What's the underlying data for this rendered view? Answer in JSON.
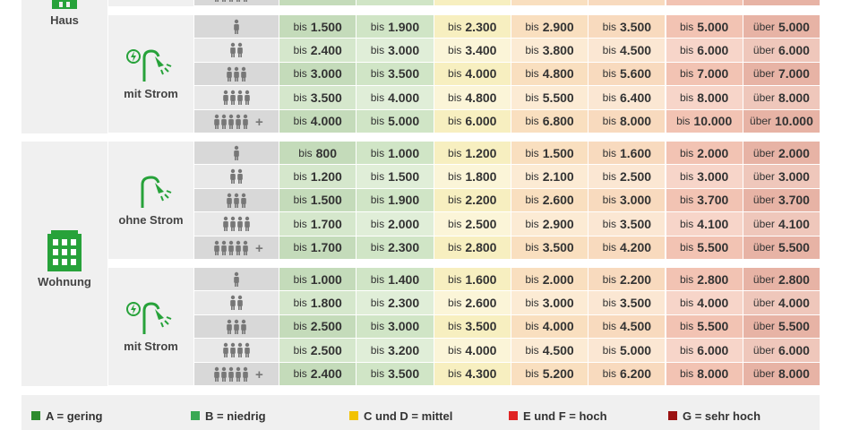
{
  "sections": [
    {
      "label": "Haus",
      "groups": [
        {
          "label": "mit Strom",
          "rows": [
            [
              {
                "pre": "bis",
                "num": "1.500"
              },
              {
                "pre": "bis",
                "num": "1.900"
              },
              {
                "pre": "bis",
                "num": "2.300"
              },
              {
                "pre": "bis",
                "num": "2.900"
              },
              {
                "pre": "bis",
                "num": "3.500"
              },
              {
                "pre": "bis",
                "num": "5.000"
              },
              {
                "pre": "über",
                "num": "5.000"
              }
            ],
            [
              {
                "pre": "bis",
                "num": "2.400"
              },
              {
                "pre": "bis",
                "num": "3.000"
              },
              {
                "pre": "bis",
                "num": "3.400"
              },
              {
                "pre": "bis",
                "num": "3.800"
              },
              {
                "pre": "bis",
                "num": "4.500"
              },
              {
                "pre": "bis",
                "num": "6.000"
              },
              {
                "pre": "über",
                "num": "6.000"
              }
            ],
            [
              {
                "pre": "bis",
                "num": "3.000"
              },
              {
                "pre": "bis",
                "num": "3.500"
              },
              {
                "pre": "bis",
                "num": "4.000"
              },
              {
                "pre": "bis",
                "num": "4.800"
              },
              {
                "pre": "bis",
                "num": "5.600"
              },
              {
                "pre": "bis",
                "num": "7.000"
              },
              {
                "pre": "über",
                "num": "7.000"
              }
            ],
            [
              {
                "pre": "bis",
                "num": "3.500"
              },
              {
                "pre": "bis",
                "num": "4.000"
              },
              {
                "pre": "bis",
                "num": "4.800"
              },
              {
                "pre": "bis",
                "num": "5.500"
              },
              {
                "pre": "bis",
                "num": "6.400"
              },
              {
                "pre": "bis",
                "num": "8.000"
              },
              {
                "pre": "über",
                "num": "8.000"
              }
            ],
            [
              {
                "pre": "bis",
                "num": "4.000"
              },
              {
                "pre": "bis",
                "num": "5.000"
              },
              {
                "pre": "bis",
                "num": "6.000"
              },
              {
                "pre": "bis",
                "num": "6.800"
              },
              {
                "pre": "bis",
                "num": "8.000"
              },
              {
                "pre": "bis",
                "num": "10.000"
              },
              {
                "pre": "über",
                "num": "10.000"
              }
            ]
          ]
        }
      ]
    },
    {
      "label": "Wohnung",
      "groups": [
        {
          "label": "ohne Strom",
          "rows": [
            [
              {
                "pre": "bis",
                "num": "800"
              },
              {
                "pre": "bis",
                "num": "1.000"
              },
              {
                "pre": "bis",
                "num": "1.200"
              },
              {
                "pre": "bis",
                "num": "1.500"
              },
              {
                "pre": "bis",
                "num": "1.600"
              },
              {
                "pre": "bis",
                "num": "2.000"
              },
              {
                "pre": "über",
                "num": "2.000"
              }
            ],
            [
              {
                "pre": "bis",
                "num": "1.200"
              },
              {
                "pre": "bis",
                "num": "1.500"
              },
              {
                "pre": "bis",
                "num": "1.800"
              },
              {
                "pre": "bis",
                "num": "2.100"
              },
              {
                "pre": "bis",
                "num": "2.500"
              },
              {
                "pre": "bis",
                "num": "3.000"
              },
              {
                "pre": "über",
                "num": "3.000"
              }
            ],
            [
              {
                "pre": "bis",
                "num": "1.500"
              },
              {
                "pre": "bis",
                "num": "1.900"
              },
              {
                "pre": "bis",
                "num": "2.200"
              },
              {
                "pre": "bis",
                "num": "2.600"
              },
              {
                "pre": "bis",
                "num": "3.000"
              },
              {
                "pre": "bis",
                "num": "3.700"
              },
              {
                "pre": "über",
                "num": "3.700"
              }
            ],
            [
              {
                "pre": "bis",
                "num": "1.700"
              },
              {
                "pre": "bis",
                "num": "2.000"
              },
              {
                "pre": "bis",
                "num": "2.500"
              },
              {
                "pre": "bis",
                "num": "2.900"
              },
              {
                "pre": "bis",
                "num": "3.500"
              },
              {
                "pre": "bis",
                "num": "4.100"
              },
              {
                "pre": "über",
                "num": "4.100"
              }
            ],
            [
              {
                "pre": "bis",
                "num": "1.700"
              },
              {
                "pre": "bis",
                "num": "2.300"
              },
              {
                "pre": "bis",
                "num": "2.800"
              },
              {
                "pre": "bis",
                "num": "3.500"
              },
              {
                "pre": "bis",
                "num": "4.200"
              },
              {
                "pre": "bis",
                "num": "5.500"
              },
              {
                "pre": "über",
                "num": "5.500"
              }
            ]
          ]
        },
        {
          "label": "mit Strom",
          "rows": [
            [
              {
                "pre": "bis",
                "num": "1.000"
              },
              {
                "pre": "bis",
                "num": "1.400"
              },
              {
                "pre": "bis",
                "num": "1.600"
              },
              {
                "pre": "bis",
                "num": "2.000"
              },
              {
                "pre": "bis",
                "num": "2.200"
              },
              {
                "pre": "bis",
                "num": "2.800"
              },
              {
                "pre": "über",
                "num": "2.800"
              }
            ],
            [
              {
                "pre": "bis",
                "num": "1.800"
              },
              {
                "pre": "bis",
                "num": "2.300"
              },
              {
                "pre": "bis",
                "num": "2.600"
              },
              {
                "pre": "bis",
                "num": "3.000"
              },
              {
                "pre": "bis",
                "num": "3.500"
              },
              {
                "pre": "bis",
                "num": "4.000"
              },
              {
                "pre": "über",
                "num": "4.000"
              }
            ],
            [
              {
                "pre": "bis",
                "num": "2.500"
              },
              {
                "pre": "bis",
                "num": "3.000"
              },
              {
                "pre": "bis",
                "num": "3.500"
              },
              {
                "pre": "bis",
                "num": "4.000"
              },
              {
                "pre": "bis",
                "num": "4.500"
              },
              {
                "pre": "bis",
                "num": "5.500"
              },
              {
                "pre": "über",
                "num": "5.500"
              }
            ],
            [
              {
                "pre": "bis",
                "num": "2.500"
              },
              {
                "pre": "bis",
                "num": "3.200"
              },
              {
                "pre": "bis",
                "num": "4.000"
              },
              {
                "pre": "bis",
                "num": "4.500"
              },
              {
                "pre": "bis",
                "num": "5.000"
              },
              {
                "pre": "bis",
                "num": "6.000"
              },
              {
                "pre": "über",
                "num": "6.000"
              }
            ],
            [
              {
                "pre": "bis",
                "num": "2.400"
              },
              {
                "pre": "bis",
                "num": "3.500"
              },
              {
                "pre": "bis",
                "num": "4.300"
              },
              {
                "pre": "bis",
                "num": "5.200"
              },
              {
                "pre": "bis",
                "num": "6.200"
              },
              {
                "pre": "bis",
                "num": "8.000"
              },
              {
                "pre": "über",
                "num": "8.000"
              }
            ]
          ]
        }
      ]
    }
  ],
  "plus": "+",
  "legend": [
    {
      "text": "A = gering",
      "color": "#2e8b2e"
    },
    {
      "text": "B = niedrig",
      "color": "#3aa853"
    },
    {
      "text": "C und D = mittel",
      "color": "#f2c200"
    },
    {
      "text": "E und F = hoch",
      "color": "#e02424"
    },
    {
      "text": "G = sehr hoch",
      "color": "#9b1212"
    }
  ]
}
